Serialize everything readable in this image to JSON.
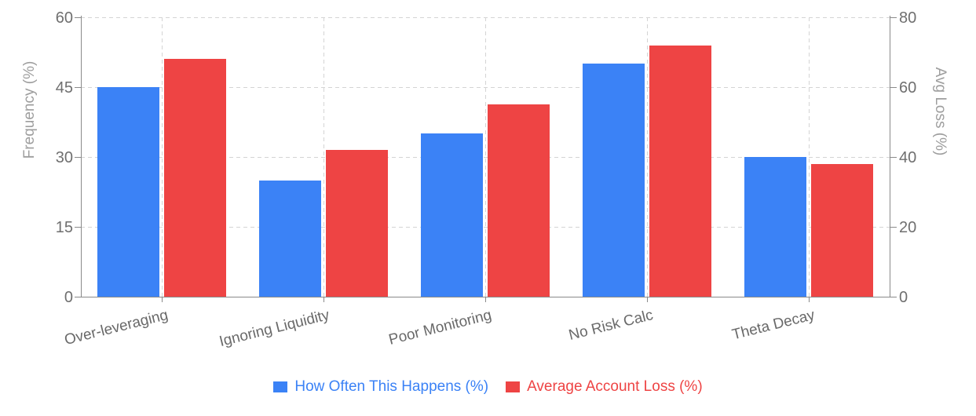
{
  "chart_data": {
    "type": "bar",
    "categories": [
      "Over-leveraging",
      "Ignoring Liquidity",
      "Poor Monitoring",
      "No Risk Calc",
      "Theta Decay"
    ],
    "series": [
      {
        "name": "How Often This Happens (%)",
        "axis": "left",
        "color": "#3b82f6",
        "values": [
          45,
          25,
          35,
          50,
          30
        ]
      },
      {
        "name": "Average Account Loss (%)",
        "axis": "right",
        "color": "#ee4444",
        "values": [
          68,
          42,
          55,
          72,
          38
        ]
      }
    ],
    "left_axis": {
      "label": "Frequency (%)",
      "ticks": [
        0,
        15,
        30,
        45,
        60
      ],
      "min": 0,
      "max": 60
    },
    "right_axis": {
      "label": "Avg Loss (%)",
      "ticks": [
        0,
        20,
        40,
        60,
        80
      ],
      "min": 0,
      "max": 80
    },
    "grid": "dashed",
    "legend_position": "bottom"
  },
  "colors": {
    "background": "#ffffff",
    "grid": "#d4d4d4",
    "spine": "#8a8a8a",
    "tick_label": "#6f6f6f",
    "category_label": "#696969",
    "axis_title": "#9e9e9e",
    "series_blue": "#3b82f6",
    "series_red": "#ee4444"
  }
}
